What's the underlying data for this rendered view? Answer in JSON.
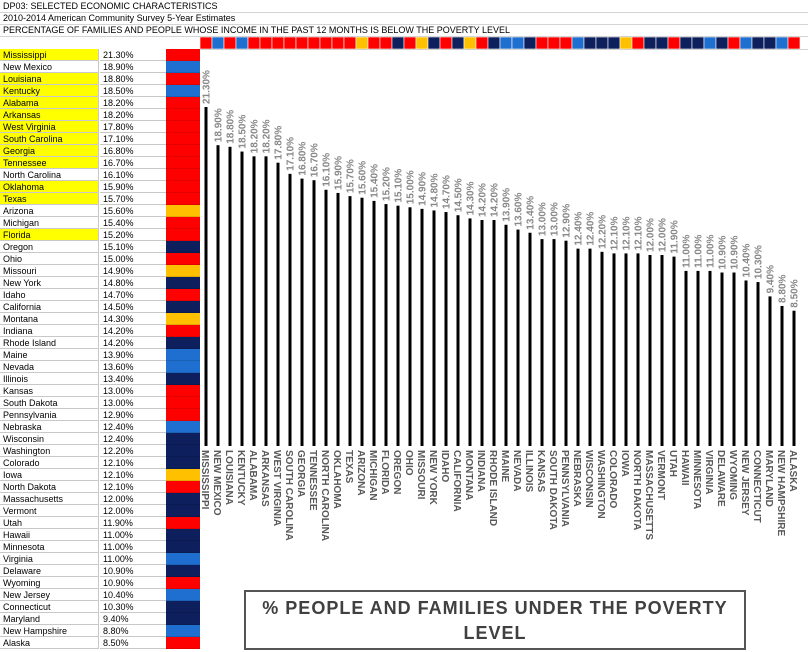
{
  "sheet": {
    "header_lines": [
      "DP03: SELECTED ECONOMIC CHARACTERISTICS",
      "2010-2014 American Community Survey 5-Year Estimates",
      "PERCENTAGE OF FAMILIES AND PEOPLE WHOSE INCOME IN THE PAST 12 MONTHS IS BELOW THE POVERTY LEVEL"
    ]
  },
  "colors": {
    "red": "#ff0000",
    "blue": "#1e6fd0",
    "navy": "#0d1f5c",
    "orange": "#ffc000",
    "yellow": "#ffff00",
    "bar": "#000000"
  },
  "table": {
    "rows": [
      {
        "state": "Mississippi",
        "pct": "21.30%",
        "highlight": true,
        "swatch": "red"
      },
      {
        "state": "New Mexico",
        "pct": "18.90%",
        "highlight": false,
        "swatch": "blue"
      },
      {
        "state": "Louisiana",
        "pct": "18.80%",
        "highlight": true,
        "swatch": "red"
      },
      {
        "state": "Kentucky",
        "pct": "18.50%",
        "highlight": true,
        "swatch": "blue"
      },
      {
        "state": "Alabama",
        "pct": "18.20%",
        "highlight": true,
        "swatch": "red"
      },
      {
        "state": "Arkansas",
        "pct": "18.20%",
        "highlight": true,
        "swatch": "red"
      },
      {
        "state": "West Virginia",
        "pct": "17.80%",
        "highlight": true,
        "swatch": "red"
      },
      {
        "state": "South Carolina",
        "pct": "17.10%",
        "highlight": true,
        "swatch": "red"
      },
      {
        "state": "Georgia",
        "pct": "16.80%",
        "highlight": true,
        "swatch": "red"
      },
      {
        "state": "Tennessee",
        "pct": "16.70%",
        "highlight": true,
        "swatch": "red"
      },
      {
        "state": "North Carolina",
        "pct": "16.10%",
        "highlight": false,
        "swatch": "red"
      },
      {
        "state": "Oklahoma",
        "pct": "15.90%",
        "highlight": true,
        "swatch": "red"
      },
      {
        "state": "Texas",
        "pct": "15.70%",
        "highlight": true,
        "swatch": "red"
      },
      {
        "state": "Arizona",
        "pct": "15.60%",
        "highlight": false,
        "swatch": "orange"
      },
      {
        "state": "Michigan",
        "pct": "15.40%",
        "highlight": false,
        "swatch": "red"
      },
      {
        "state": "Florida",
        "pct": "15.20%",
        "highlight": true,
        "swatch": "red"
      },
      {
        "state": "Oregon",
        "pct": "15.10%",
        "highlight": false,
        "swatch": "navy"
      },
      {
        "state": "Ohio",
        "pct": "15.00%",
        "highlight": false,
        "swatch": "red"
      },
      {
        "state": "Missouri",
        "pct": "14.90%",
        "highlight": false,
        "swatch": "orange"
      },
      {
        "state": "New York",
        "pct": "14.80%",
        "highlight": false,
        "swatch": "navy"
      },
      {
        "state": "Idaho",
        "pct": "14.70%",
        "highlight": false,
        "swatch": "red"
      },
      {
        "state": "California",
        "pct": "14.50%",
        "highlight": false,
        "swatch": "navy"
      },
      {
        "state": "Montana",
        "pct": "14.30%",
        "highlight": false,
        "swatch": "orange"
      },
      {
        "state": "Indiana",
        "pct": "14.20%",
        "highlight": false,
        "swatch": "red"
      },
      {
        "state": "Rhode Island",
        "pct": "14.20%",
        "highlight": false,
        "swatch": "navy"
      },
      {
        "state": "Maine",
        "pct": "13.90%",
        "highlight": false,
        "swatch": "blue"
      },
      {
        "state": "Nevada",
        "pct": "13.60%",
        "highlight": false,
        "swatch": "blue"
      },
      {
        "state": "Illinois",
        "pct": "13.40%",
        "highlight": false,
        "swatch": "navy"
      },
      {
        "state": "Kansas",
        "pct": "13.00%",
        "highlight": false,
        "swatch": "red"
      },
      {
        "state": "South Dakota",
        "pct": "13.00%",
        "highlight": false,
        "swatch": "red"
      },
      {
        "state": "Pennsylvania",
        "pct": "12.90%",
        "highlight": false,
        "swatch": "red"
      },
      {
        "state": "Nebraska",
        "pct": "12.40%",
        "highlight": false,
        "swatch": "blue"
      },
      {
        "state": "Wisconsin",
        "pct": "12.40%",
        "highlight": false,
        "swatch": "navy"
      },
      {
        "state": "Washington",
        "pct": "12.20%",
        "highlight": false,
        "swatch": "navy"
      },
      {
        "state": "Colorado",
        "pct": "12.10%",
        "highlight": false,
        "swatch": "navy"
      },
      {
        "state": "Iowa",
        "pct": "12.10%",
        "highlight": false,
        "swatch": "orange"
      },
      {
        "state": "North Dakota",
        "pct": "12.10%",
        "highlight": false,
        "swatch": "red"
      },
      {
        "state": "Massachusetts",
        "pct": "12.00%",
        "highlight": false,
        "swatch": "navy"
      },
      {
        "state": "Vermont",
        "pct": "12.00%",
        "highlight": false,
        "swatch": "navy"
      },
      {
        "state": "Utah",
        "pct": "11.90%",
        "highlight": false,
        "swatch": "red"
      },
      {
        "state": "Hawaii",
        "pct": "11.00%",
        "highlight": false,
        "swatch": "navy"
      },
      {
        "state": "Minnesota",
        "pct": "11.00%",
        "highlight": false,
        "swatch": "navy"
      },
      {
        "state": "Virginia",
        "pct": "11.00%",
        "highlight": false,
        "swatch": "blue"
      },
      {
        "state": "Delaware",
        "pct": "10.90%",
        "highlight": false,
        "swatch": "navy"
      },
      {
        "state": "Wyoming",
        "pct": "10.90%",
        "highlight": false,
        "swatch": "red"
      },
      {
        "state": "New Jersey",
        "pct": "10.40%",
        "highlight": false,
        "swatch": "blue"
      },
      {
        "state": "Connecticut",
        "pct": "10.30%",
        "highlight": false,
        "swatch": "navy"
      },
      {
        "state": "Maryland",
        "pct": "9.40%",
        "highlight": false,
        "swatch": "navy"
      },
      {
        "state": "New Hampshire",
        "pct": "8.80%",
        "highlight": false,
        "swatch": "blue"
      },
      {
        "state": "Alaska",
        "pct": "8.50%",
        "highlight": false,
        "swatch": "red"
      }
    ]
  },
  "chart_data": {
    "type": "bar",
    "title": "% PEOPLE AND FAMILIES UNDER THE POVERTY LEVEL",
    "categories": [
      "MISSISSIPPI",
      "NEW MEXICO",
      "LOUISIANA",
      "KENTUCKY",
      "ALABAMA",
      "ARKANSAS",
      "WEST VIRGINIA",
      "SOUTH CAROLINA",
      "GEORGIA",
      "TENNESSEE",
      "NORTH CAROLINA",
      "OKLAHOMA",
      "TEXAS",
      "ARIZONA",
      "MICHIGAN",
      "FLORIDA",
      "OREGON",
      "OHIO",
      "MISSOURI",
      "NEW YORK",
      "IDAHO",
      "CALIFORNIA",
      "MONTANA",
      "INDIANA",
      "RHODE ISLAND",
      "MAINE",
      "NEVADA",
      "ILLINOIS",
      "KANSAS",
      "SOUTH DAKOTA",
      "PENNSYLVANIA",
      "NEBRASKA",
      "WISCONSIN",
      "WASHINGTON",
      "COLORADO",
      "IOWA",
      "NORTH DAKOTA",
      "MASSACHUSETTS",
      "VERMONT",
      "UTAH",
      "HAWAII",
      "MINNESOTA",
      "VIRGINIA",
      "DELAWARE",
      "WYOMING",
      "NEW JERSEY",
      "CONNECTICUT",
      "MARYLAND",
      "NEW HAMPSHIRE",
      "ALASKA"
    ],
    "values": [
      21.3,
      18.9,
      18.8,
      18.5,
      18.2,
      18.2,
      17.8,
      17.1,
      16.8,
      16.7,
      16.1,
      15.9,
      15.7,
      15.6,
      15.4,
      15.2,
      15.1,
      15.0,
      14.9,
      14.8,
      14.7,
      14.5,
      14.3,
      14.2,
      14.2,
      13.9,
      13.6,
      13.4,
      13.0,
      13.0,
      12.9,
      12.4,
      12.4,
      12.2,
      12.1,
      12.1,
      12.1,
      12.0,
      12.0,
      11.9,
      11.0,
      11.0,
      11.0,
      10.9,
      10.9,
      10.4,
      10.3,
      9.4,
      8.8,
      8.5
    ],
    "data_labels": [
      "21.30%",
      "18.90%",
      "18.80%",
      "18.50%",
      "18.20%",
      "18.20%",
      "17.80%",
      "17.10%",
      "16.80%",
      "16.70%",
      "16.10%",
      "15.90%",
      "15.70%",
      "15.60%",
      "15.40%",
      "15.20%",
      "15.10%",
      "15.00%",
      "14.90%",
      "14.80%",
      "14.70%",
      "14.50%",
      "14.30%",
      "14.20%",
      "14.20%",
      "13.90%",
      "13.60%",
      "13.40%",
      "13.00%",
      "13.00%",
      "12.90%",
      "12.40%",
      "12.40%",
      "12.20%",
      "12.10%",
      "12.10%",
      "12.10%",
      "12.00%",
      "12.00%",
      "11.90%",
      "11.00%",
      "11.00%",
      "11.00%",
      "10.90%",
      "10.90%",
      "10.40%",
      "10.30%",
      "9.40%",
      "8.80%",
      "8.50%"
    ],
    "top_strip_colors": [
      "red",
      "blue",
      "red",
      "blue",
      "red",
      "red",
      "red",
      "red",
      "red",
      "red",
      "red",
      "red",
      "red",
      "orange",
      "red",
      "red",
      "navy",
      "red",
      "orange",
      "navy",
      "red",
      "navy",
      "orange",
      "red",
      "navy",
      "blue",
      "blue",
      "navy",
      "red",
      "red",
      "red",
      "blue",
      "navy",
      "navy",
      "navy",
      "orange",
      "red",
      "navy",
      "navy",
      "red",
      "navy",
      "navy",
      "blue",
      "navy",
      "red",
      "blue",
      "navy",
      "navy",
      "blue",
      "red"
    ],
    "ylim": [
      0,
      21.3
    ],
    "grid": false,
    "legend": "none"
  }
}
